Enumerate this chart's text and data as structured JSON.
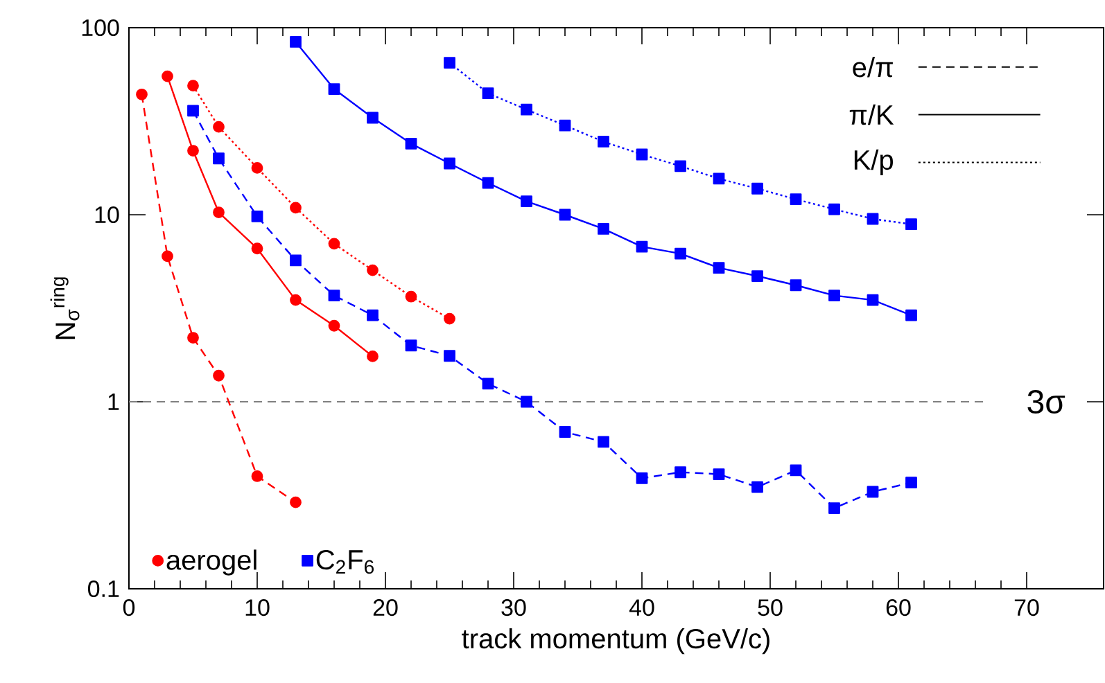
{
  "chart_data": {
    "type": "line",
    "xlabel": "track momentum (GeV/c)",
    "ylabel": "N$_{σ}$$^{ring}$",
    "log": "y",
    "xlim": [
      0,
      76
    ],
    "xticks": [
      0,
      10,
      20,
      30,
      40,
      50,
      60,
      70
    ],
    "ylim": [
      0.1,
      100
    ],
    "yticks": [
      0.1,
      1,
      10,
      100
    ],
    "legend": "bottom left",
    "annotations": [
      "e/π",
      "π/K",
      "K/p"
    ],
    "ref_lines": [
      {
        "axis": "y",
        "value": 1,
        "label": "3σ",
        "color": "#808080",
        "line_style": "dashed"
      }
    ],
    "series": [
      {
        "name": "aerogel",
        "color": "#ff0000",
        "marker": "circle",
        "line_style": "dashed",
        "x": [
          1,
          3,
          5,
          7,
          10,
          13
        ],
        "values": [
          44,
          6.0,
          2.2,
          1.38,
          0.4,
          0.29
        ]
      },
      {
        "color": "#ff0000",
        "marker": "circle",
        "line_style": "solid",
        "x": [
          3,
          5,
          7,
          10,
          13,
          16,
          19
        ],
        "values": [
          55,
          22,
          10.3,
          6.6,
          3.5,
          2.55,
          1.75
        ]
      },
      {
        "color": "#ff0000",
        "marker": "circle",
        "line_style": "dotted",
        "x": [
          5,
          7,
          10,
          13,
          16,
          19,
          22,
          25
        ],
        "values": [
          49,
          29.5,
          17.8,
          10.9,
          7.0,
          5.05,
          3.65,
          2.78
        ]
      },
      {
        "name": "C$_{2}$F$_{6}$",
        "color": "#0000ff",
        "marker": "square",
        "line_style": "dashed",
        "x": [
          5,
          7,
          10,
          13,
          16,
          19,
          22,
          25,
          28,
          31,
          34,
          37,
          40,
          43,
          46,
          49,
          52,
          55,
          58,
          61
        ],
        "values": [
          36,
          20,
          9.8,
          5.7,
          3.7,
          2.9,
          2.0,
          1.76,
          1.25,
          1.0,
          0.69,
          0.61,
          0.39,
          0.42,
          0.41,
          0.35,
          0.43,
          0.27,
          0.33,
          0.37
        ]
      },
      {
        "color": "#0000ff",
        "marker": "square",
        "line_style": "solid",
        "x": [
          13,
          16,
          19,
          22,
          25,
          28,
          31,
          34,
          37,
          40,
          43,
          46,
          49,
          52,
          55,
          58,
          61
        ],
        "values": [
          84,
          47,
          33,
          24,
          18.8,
          14.8,
          11.8,
          10.0,
          8.4,
          6.75,
          6.2,
          5.2,
          4.7,
          4.2,
          3.7,
          3.5,
          2.9
        ]
      },
      {
        "color": "#0000ff",
        "marker": "square",
        "line_style": "dotted",
        "x": [
          25,
          28,
          31,
          34,
          37,
          40,
          43,
          46,
          49,
          52,
          55,
          58,
          61
        ],
        "values": [
          65,
          44.6,
          36.5,
          30,
          24.6,
          21,
          18.2,
          15.6,
          13.8,
          12.1,
          10.7,
          9.5,
          8.9
        ]
      }
    ]
  }
}
